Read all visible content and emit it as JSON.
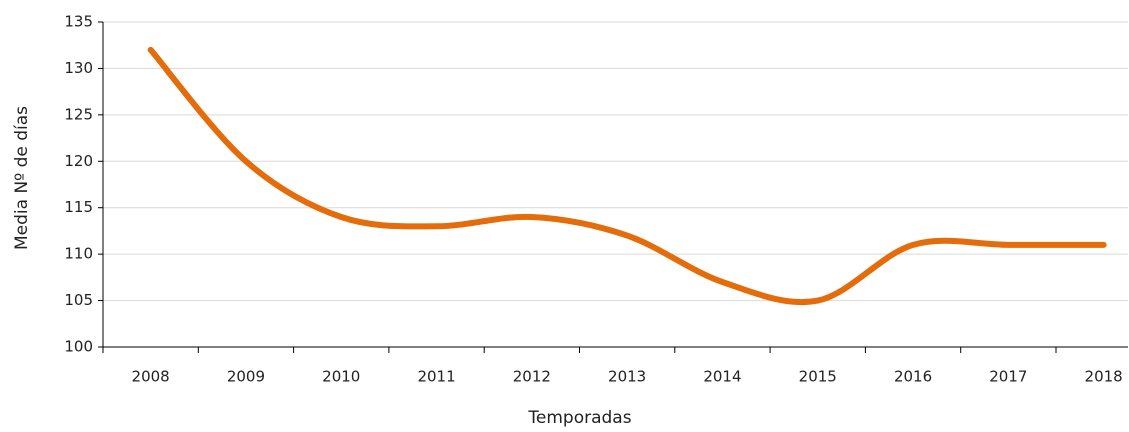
{
  "chart_data": {
    "type": "line",
    "x_label": "Temporadas",
    "y_label": "Media Nº de días",
    "categories": [
      "2008",
      "2009",
      "2010",
      "2011",
      "2012",
      "2013",
      "2014",
      "2015",
      "2016",
      "2017",
      "2018"
    ],
    "series": [
      {
        "name": "Media",
        "color": "#e46c0a",
        "values": [
          132,
          120,
          114,
          113,
          114,
          112,
          107,
          105,
          111,
          111,
          111
        ]
      }
    ],
    "ylim": [
      100,
      135
    ],
    "yticks": [
      100,
      105,
      110,
      115,
      120,
      125,
      130,
      135
    ],
    "grid": true,
    "smooth": true
  }
}
